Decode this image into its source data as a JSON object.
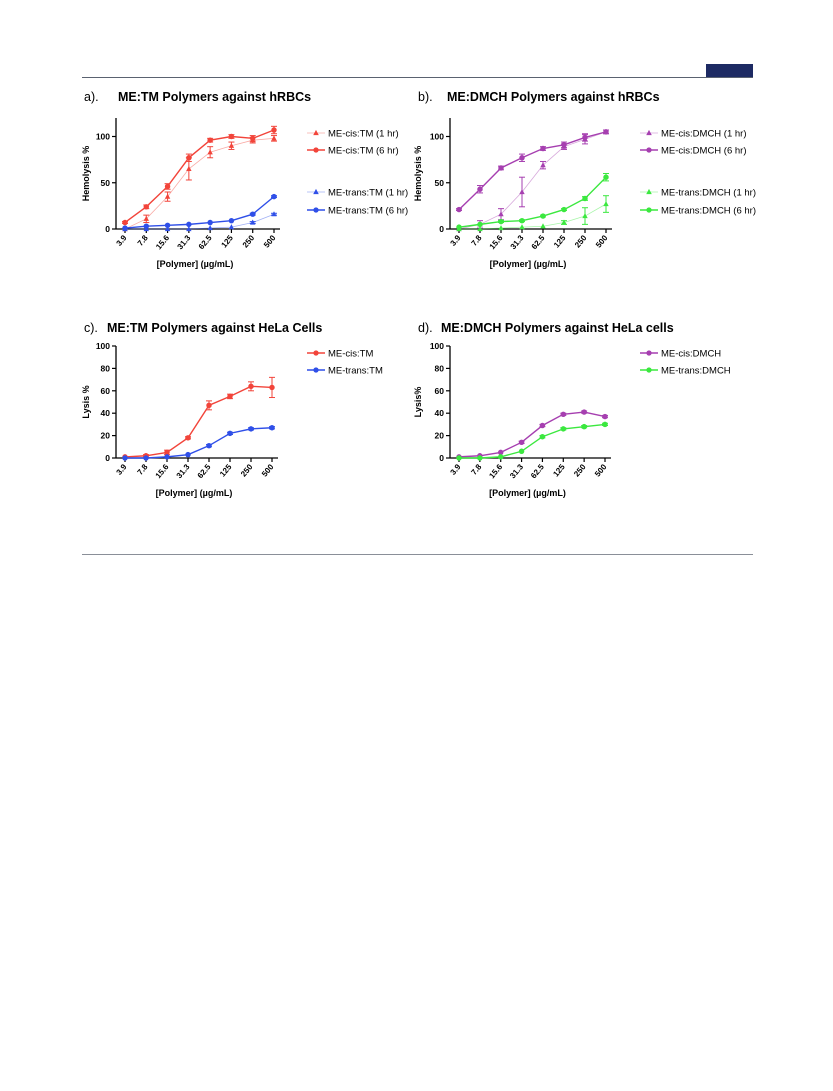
{
  "chart_data": [
    {
      "id": "a",
      "panel_label": "a).",
      "type": "line",
      "title": "ME:TM Polymers against hRBCs",
      "xlabel": "[Polymer] (µg/mL)",
      "ylabel": "Hemolysis %",
      "categories": [
        "3.9",
        "7.8",
        "15.6",
        "31.3",
        "62.5",
        "125",
        "250",
        "500"
      ],
      "ylim": [
        0,
        120
      ],
      "yticks": [
        0,
        50,
        100
      ],
      "legend_position": "right",
      "series": [
        {
          "name": "ME-cis:TM (1 hr)",
          "color": "#f2443a",
          "marker": "triangle",
          "style": "faint",
          "values": [
            0,
            11,
            35,
            65,
            83,
            90,
            96,
            98
          ],
          "errors": [
            0,
            4,
            5,
            12,
            6,
            4,
            3,
            3
          ]
        },
        {
          "name": "ME-cis:TM (6 hr)",
          "color": "#f2443a",
          "marker": "circle",
          "style": "solid",
          "values": [
            7,
            24,
            46,
            77,
            96,
            100,
            98,
            107
          ],
          "errors": [
            1,
            2,
            3,
            4,
            2,
            2,
            3,
            4
          ]
        },
        {
          "name": "ME-trans:TM (1 hr)",
          "color": "#2f4fe8",
          "marker": "triangle",
          "style": "faint",
          "values": [
            0,
            0,
            0,
            0,
            1,
            2,
            7,
            16
          ],
          "errors": [
            0,
            0,
            0,
            0,
            0,
            0,
            1,
            1
          ]
        },
        {
          "name": "ME-trans:TM (6 hr)",
          "color": "#2f4fe8",
          "marker": "circle",
          "style": "solid",
          "values": [
            1,
            3,
            4,
            5,
            7,
            9,
            16,
            35
          ],
          "errors": [
            0,
            0,
            0,
            0,
            0,
            0,
            1,
            1
          ]
        }
      ]
    },
    {
      "id": "b",
      "panel_label": "b).",
      "type": "line",
      "title": "ME:DMCH Polymers against hRBCs",
      "xlabel": "[Polymer] (µg/mL)",
      "ylabel": "Hemolysis %",
      "categories": [
        "3.9",
        "7.8",
        "15.6",
        "31.3",
        "62.5",
        "125",
        "250",
        "500"
      ],
      "ylim": [
        0,
        120
      ],
      "yticks": [
        0,
        50,
        100
      ],
      "legend_position": "right",
      "series": [
        {
          "name": "ME-cis:DMCH (1 hr)",
          "color": "#a63fb0",
          "marker": "triangle",
          "style": "faint",
          "values": [
            0,
            5,
            16,
            40,
            69,
            89,
            97,
            105
          ],
          "errors": [
            0,
            4,
            6,
            16,
            4,
            3,
            5,
            2
          ]
        },
        {
          "name": "ME-cis:DMCH (6 hr)",
          "color": "#a63fb0",
          "marker": "circle",
          "style": "solid",
          "values": [
            21,
            43,
            66,
            77,
            87,
            91,
            99,
            105
          ],
          "errors": [
            1,
            4,
            2,
            4,
            2,
            3,
            4,
            2
          ]
        },
        {
          "name": "ME-trans:DMCH (1 hr)",
          "color": "#3be83f",
          "marker": "triangle",
          "style": "faint",
          "values": [
            0,
            0,
            1,
            2,
            3,
            7,
            14,
            27
          ],
          "errors": [
            0,
            0,
            0,
            0,
            0,
            2,
            9,
            9
          ]
        },
        {
          "name": "ME-trans:DMCH (6 hr)",
          "color": "#3be83f",
          "marker": "circle",
          "style": "solid",
          "values": [
            2,
            5,
            8,
            9,
            14,
            21,
            33,
            56
          ],
          "errors": [
            0,
            0,
            1,
            1,
            1,
            1,
            2,
            4
          ]
        }
      ]
    },
    {
      "id": "c",
      "panel_label": "c).",
      "type": "line",
      "title": "ME:TM Polymers against HeLa Cells",
      "xlabel": "[Polymer] (µg/mL)",
      "ylabel": "Lysis %",
      "categories": [
        "3.9",
        "7.8",
        "15.6",
        "31.3",
        "62.5",
        "125",
        "250",
        "500"
      ],
      "ylim": [
        0,
        100
      ],
      "yticks": [
        0,
        20,
        40,
        60,
        80,
        100
      ],
      "legend_position": "right",
      "series": [
        {
          "name": "ME-cis:TM",
          "color": "#f2443a",
          "marker": "circle",
          "style": "solid",
          "values": [
            1,
            2,
            5,
            18,
            47,
            55,
            64,
            63
          ],
          "errors": [
            0,
            1,
            2,
            1,
            4,
            2,
            4,
            9
          ]
        },
        {
          "name": "ME-trans:TM",
          "color": "#2f4fe8",
          "marker": "circle",
          "style": "solid",
          "values": [
            0,
            0,
            1,
            3,
            11,
            22,
            26,
            27
          ],
          "errors": [
            0,
            0,
            0,
            0,
            1,
            1,
            1,
            1
          ]
        }
      ]
    },
    {
      "id": "d",
      "panel_label": "d).",
      "type": "line",
      "title": "ME:DMCH Polymers against HeLa cells",
      "xlabel": "[Polymer] (µg/mL)",
      "ylabel": "Lysis%",
      "categories": [
        "3.9",
        "7.8",
        "15.6",
        "31.3",
        "62.5",
        "125",
        "250",
        "500"
      ],
      "ylim": [
        0,
        100
      ],
      "yticks": [
        0,
        20,
        40,
        60,
        80,
        100
      ],
      "legend_position": "right",
      "series": [
        {
          "name": "ME-cis:DMCH",
          "color": "#a63fb0",
          "marker": "circle",
          "style": "solid",
          "values": [
            1,
            2,
            5,
            14,
            29,
            39,
            41,
            37
          ],
          "errors": [
            0,
            0,
            0,
            1,
            1,
            1,
            1,
            1
          ]
        },
        {
          "name": "ME-trans:DMCH",
          "color": "#3be83f",
          "marker": "circle",
          "style": "solid",
          "values": [
            0,
            0,
            1,
            6,
            19,
            26,
            28,
            30
          ],
          "errors": [
            0,
            0,
            0,
            0,
            1,
            1,
            1,
            1
          ]
        }
      ]
    }
  ]
}
